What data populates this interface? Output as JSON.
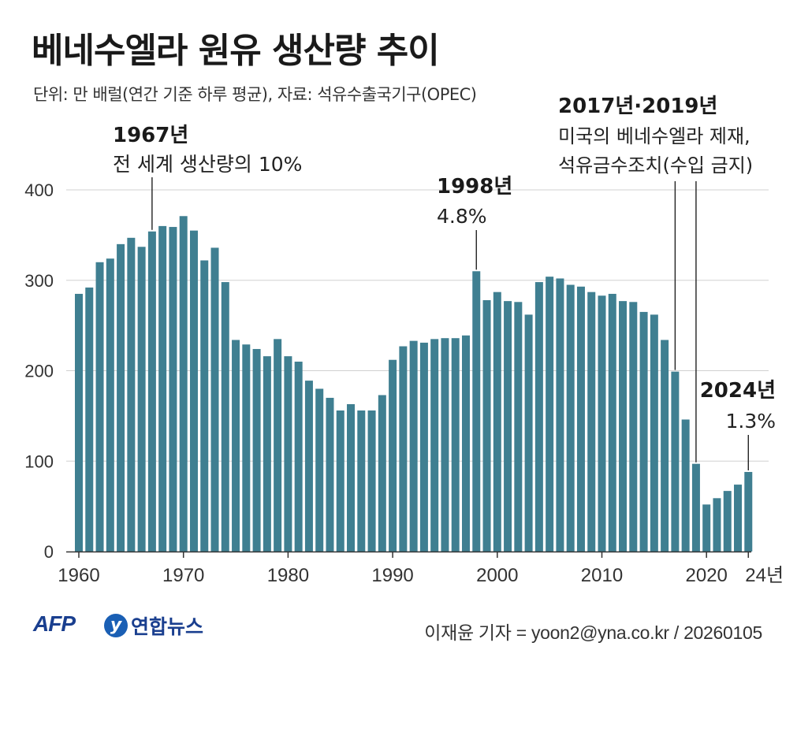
{
  "header": {
    "title": "베네수엘라 원유 생산량 추이",
    "subtitle": "단위: 만 배럴(연간 기준 하루 평균), 자료: 석유수출국기구(OPEC)"
  },
  "annotations": [
    {
      "year": 1967,
      "line1": "1967년",
      "line2": "전 세계 생산량의 10%"
    },
    {
      "year": 1998,
      "line1": "1998년",
      "line2": "4.8%"
    },
    {
      "year": 2017,
      "line1": "2017년·2019년",
      "line2": "미국의 베네수엘라 제재,",
      "line3": "석유금수조치(수입 금지)"
    },
    {
      "year": 2024,
      "line1": "2024년",
      "line2": "1.3%"
    }
  ],
  "footer": {
    "afp_logo": "AFP",
    "yna_logo": "연합뉴스",
    "yna_mark": "y",
    "credit": "이재윤 기자 = yoon2@yna.co.kr / 20260105"
  },
  "colors": {
    "bar": "#3f7f91",
    "grid": "#d0d0d0",
    "axis": "#333333",
    "brand": "#1a3f8f"
  },
  "chart_data": {
    "type": "bar",
    "title": "베네수엘라 원유 생산량 추이",
    "xlabel": "",
    "ylabel": "",
    "ylim": [
      0,
      400
    ],
    "yticks": [
      0,
      100,
      200,
      300,
      400
    ],
    "xtick_labels": [
      {
        "year": 1960,
        "label": "1960"
      },
      {
        "year": 1970,
        "label": "1970"
      },
      {
        "year": 1980,
        "label": "1980"
      },
      {
        "year": 1990,
        "label": "1990"
      },
      {
        "year": 2000,
        "label": "2000"
      },
      {
        "year": 2010,
        "label": "2010"
      },
      {
        "year": 2020,
        "label": "2020"
      },
      {
        "year": 2024,
        "label": "24년"
      }
    ],
    "categories": [
      1960,
      1961,
      1962,
      1963,
      1964,
      1965,
      1966,
      1967,
      1968,
      1969,
      1970,
      1971,
      1972,
      1973,
      1974,
      1975,
      1976,
      1977,
      1978,
      1979,
      1980,
      1981,
      1982,
      1983,
      1984,
      1985,
      1986,
      1987,
      1988,
      1989,
      1990,
      1991,
      1992,
      1993,
      1994,
      1995,
      1996,
      1997,
      1998,
      1999,
      2000,
      2001,
      2002,
      2003,
      2004,
      2005,
      2006,
      2007,
      2008,
      2009,
      2010,
      2011,
      2012,
      2013,
      2014,
      2015,
      2016,
      2017,
      2018,
      2019,
      2020,
      2021,
      2022,
      2023,
      2024
    ],
    "values": [
      285,
      292,
      320,
      324,
      340,
      347,
      337,
      354,
      360,
      359,
      371,
      355,
      322,
      336,
      298,
      234,
      229,
      224,
      216,
      235,
      216,
      210,
      189,
      180,
      170,
      156,
      163,
      156,
      156,
      173,
      212,
      227,
      233,
      231,
      235,
      236,
      236,
      239,
      310,
      278,
      287,
      277,
      276,
      262,
      298,
      304,
      302,
      295,
      293,
      287,
      283,
      285,
      277,
      276,
      265,
      262,
      234,
      199,
      146,
      97,
      52,
      59,
      67,
      74,
      88
    ]
  }
}
